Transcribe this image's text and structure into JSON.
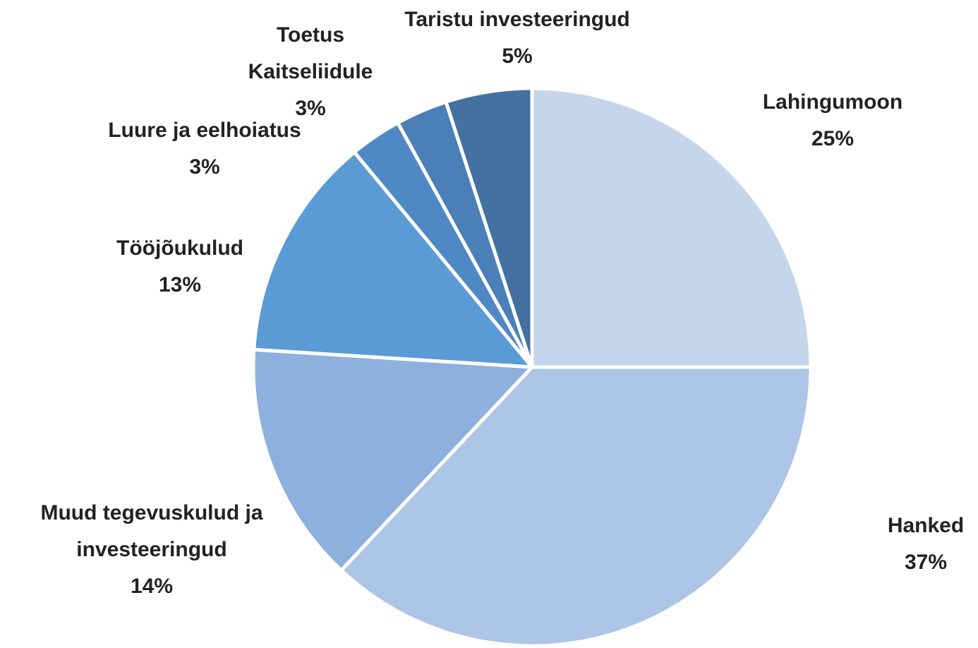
{
  "chart_data": {
    "type": "pie",
    "categories": [
      "Lahingumoon",
      "Hanked",
      "Muud tegevuskulud ja investeeringud",
      "Tööjõukulud",
      "Luure ja eelhoiatus",
      "Toetus Kaitseliidule",
      "Taristu investeeringud"
    ],
    "values": [
      25,
      37,
      14,
      13,
      3,
      3,
      5
    ],
    "value_labels": [
      "25%",
      "37%",
      "14%",
      "13%",
      "3%",
      "3%",
      "5%"
    ],
    "colors": [
      "#c5d6ec",
      "#adc5e6",
      "#8db0dd",
      "#5b9bd5",
      "#4f89c5",
      "#4a7fb8",
      "#44719f"
    ]
  }
}
